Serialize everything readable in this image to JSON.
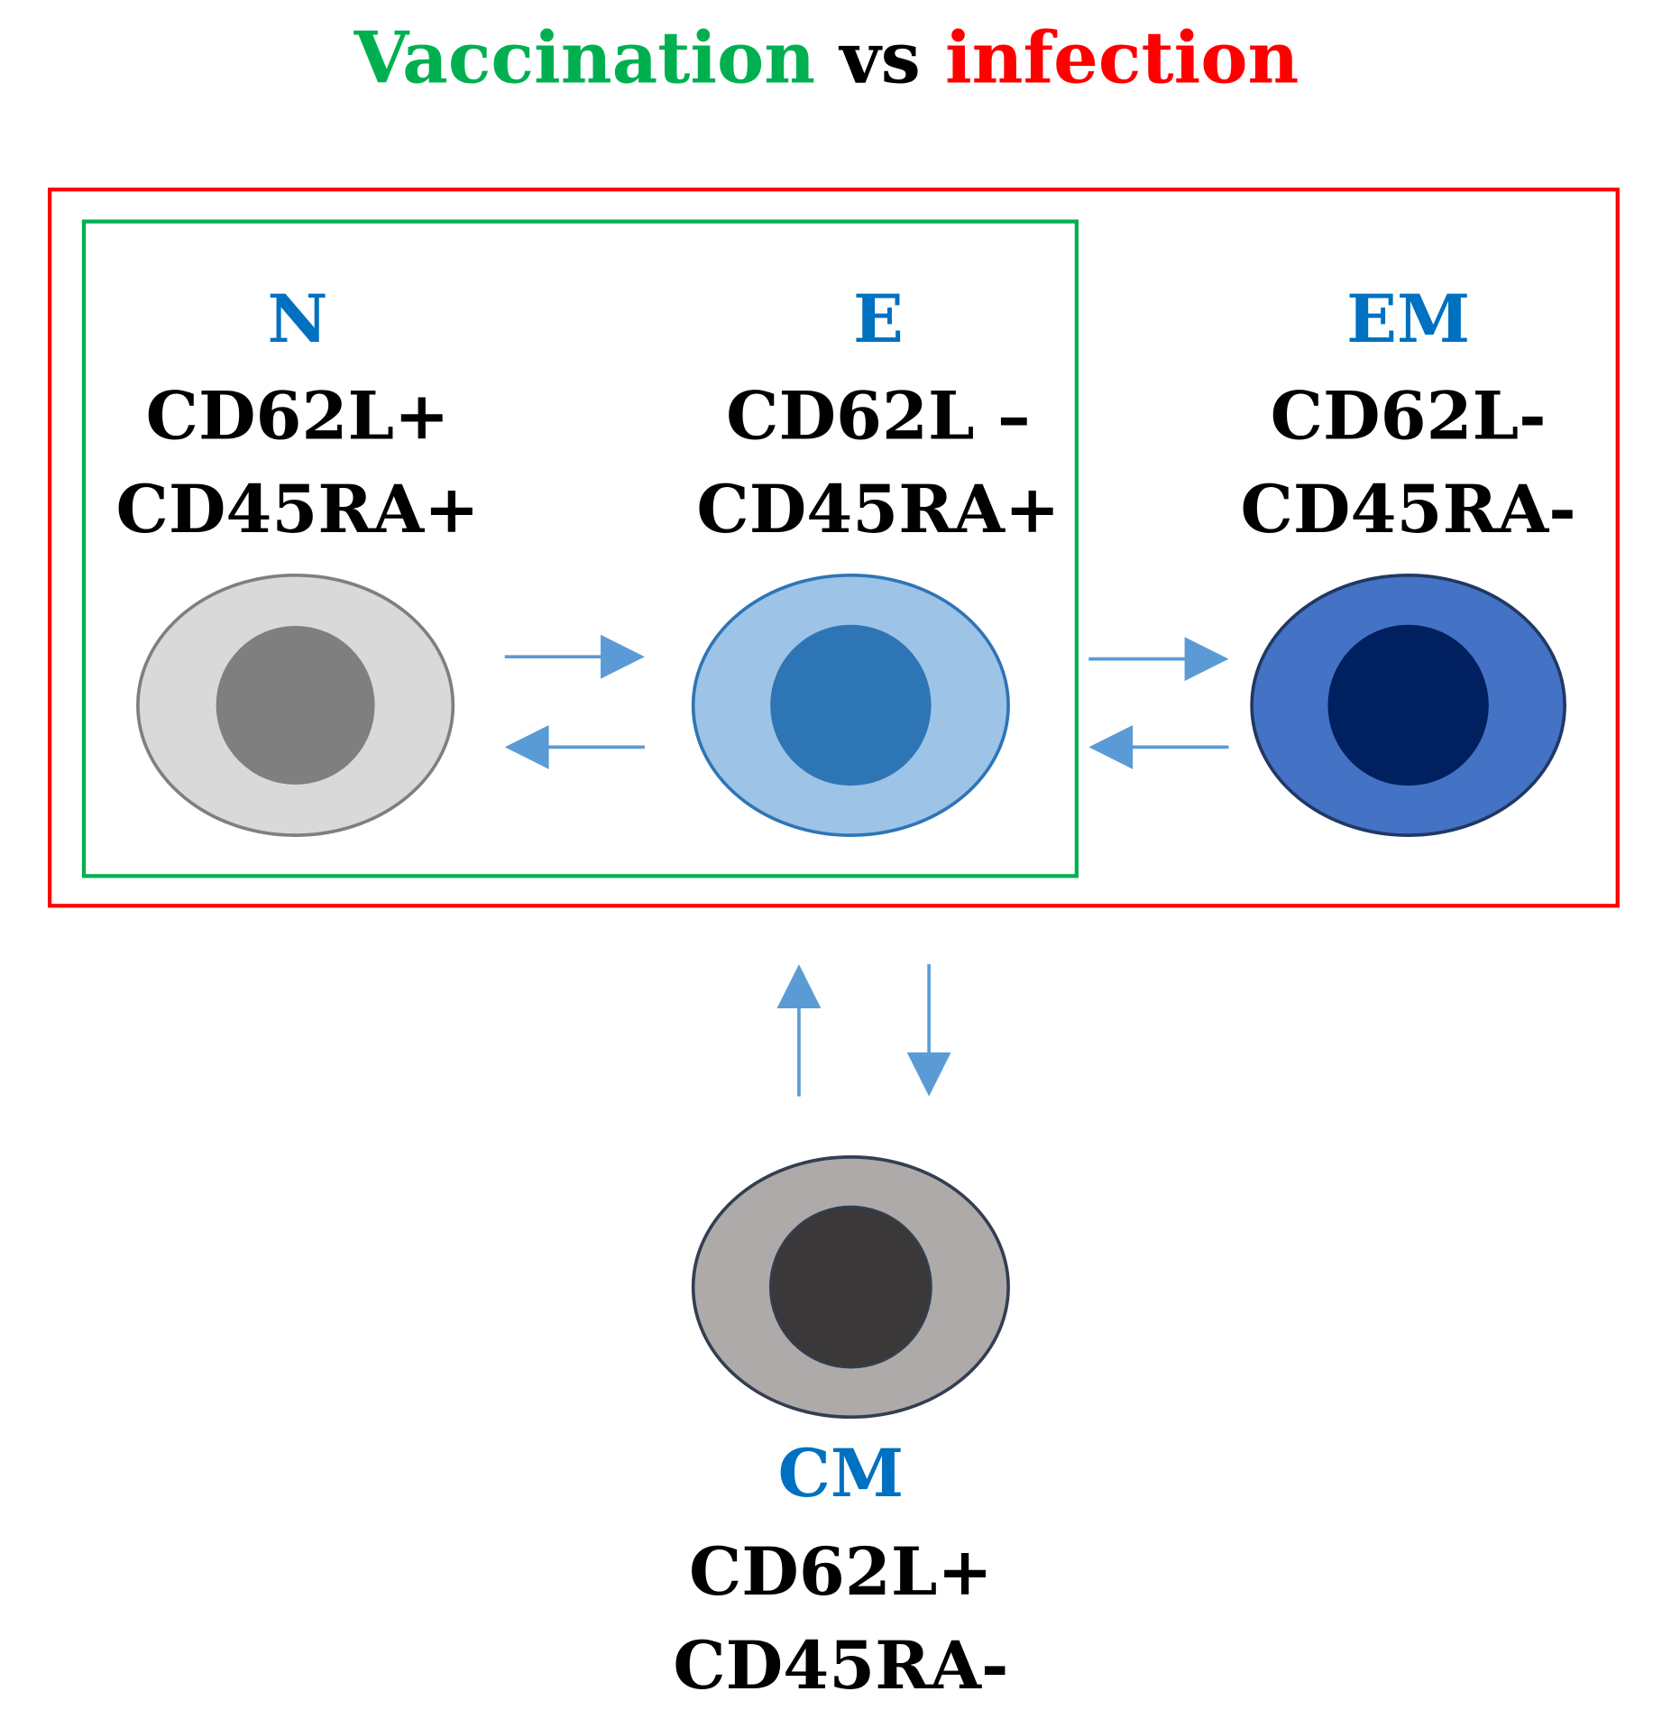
{
  "title": {
    "part1": "Vaccination",
    "part2": " vs ",
    "part3": "infection",
    "colors": {
      "vaccination": "#00b050",
      "vs": "#000000",
      "infection": "#ff0000"
    }
  },
  "boxes": {
    "infection_box_color": "#ff0000",
    "vaccination_box_color": "#00b050"
  },
  "cells": {
    "n": {
      "code": "N",
      "marker1": "CD62L+",
      "marker2": "CD45RA+",
      "fill": "#d9d9d9",
      "stroke": "#7f7f7f",
      "nucleus": "#7f7f7f"
    },
    "e": {
      "code": "E",
      "marker1": "CD62L –",
      "marker2": "CD45RA+",
      "fill": "#9dc3e6",
      "stroke": "#2e75b6",
      "nucleus": "#2e75b6"
    },
    "em": {
      "code": "EM",
      "marker1": "CD62L-",
      "marker2": "CD45RA-",
      "fill": "#4472c4",
      "stroke": "#203864",
      "nucleus": "#002060"
    },
    "cm": {
      "code": "CM",
      "marker1": "CD62L+",
      "marker2": "CD45RA-",
      "fill": "#aeaaaa",
      "stroke": "#333f50",
      "nucleus": "#3a3838"
    }
  },
  "arrow_color": "#5b9bd5",
  "code_color": "#0070c0"
}
